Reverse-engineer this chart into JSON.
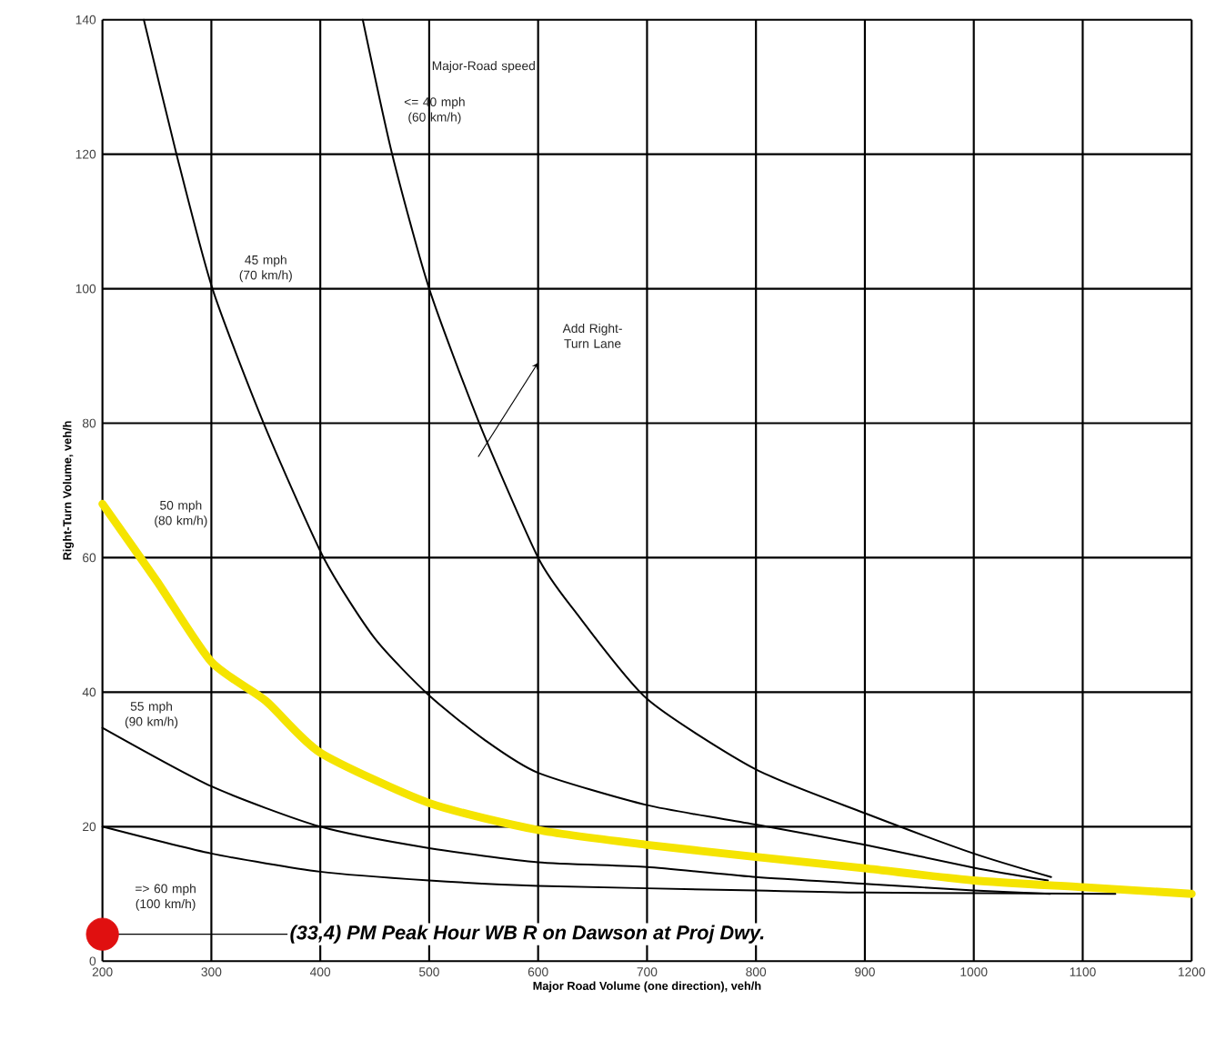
{
  "chart_data": {
    "type": "line",
    "xlabel": "Major Road Volume (one direction), veh/h",
    "ylabel": "Right-Turn Volume, veh/h",
    "xlim": [
      200,
      1200
    ],
    "ylim": [
      0,
      140
    ],
    "xticks": [
      200,
      300,
      400,
      500,
      600,
      700,
      800,
      900,
      1000,
      1100,
      1200
    ],
    "yticks": [
      0,
      20,
      40,
      60,
      80,
      100,
      120,
      140
    ],
    "grid": true,
    "series": [
      {
        "name": "<= 40 mph (60 km/h)",
        "color": "#000000",
        "x": [
          439,
          466,
          500,
          546,
          600,
          634,
          700,
          800,
          900,
          1000,
          1071
        ],
        "values": [
          140,
          120,
          100,
          80,
          60,
          52,
          39,
          28.5,
          22,
          16,
          12.5
        ]
      },
      {
        "name": "45 mph (70 km/h)",
        "color": "#000000",
        "x": [
          238,
          268,
          301,
          348,
          403,
          450,
          500,
          550,
          600,
          700,
          800,
          900,
          1000,
          1068
        ],
        "values": [
          140,
          120,
          100,
          80,
          60,
          48,
          39.5,
          33,
          28,
          23.2,
          20.3,
          17.3,
          13.9,
          12
        ]
      },
      {
        "name": "50 mph (80 km/h)",
        "color": "#f5e400",
        "x": [
          200,
          250,
          300,
          350,
          400,
          500,
          600,
          700,
          800,
          900,
          1000,
          1100,
          1200
        ],
        "values": [
          68,
          56.5,
          44.5,
          38.7,
          31,
          23.5,
          19.5,
          17.3,
          15.5,
          13.8,
          12,
          11,
          10
        ]
      },
      {
        "name": "55 mph (90 km/h)",
        "color": "#000000",
        "x": [
          200,
          300,
          400,
          500,
          600,
          700,
          800,
          900,
          1000,
          1070
        ],
        "values": [
          34.7,
          26,
          20,
          16.8,
          14.7,
          14,
          12.5,
          11.5,
          10.5,
          10
        ]
      },
      {
        "name": "=> 60 mph (100 km/h)",
        "color": "#000000",
        "x": [
          200,
          300,
          400,
          500,
          600,
          800,
          900,
          1130
        ],
        "values": [
          20,
          16,
          13.3,
          12,
          11.2,
          10.5,
          10.2,
          10
        ]
      },
      {
        "type": "scatter",
        "color": "#e01010",
        "x": [
          200
        ],
        "values": [
          4
        ]
      }
    ],
    "annotations": [
      "Major-Road speed",
      {
        "text": "(33,4) PM Peak Hour WB R on Dawson at Proj Dwy.",
        "x": 200,
        "y": 4
      },
      "Add Right-Turn Lane"
    ]
  }
}
